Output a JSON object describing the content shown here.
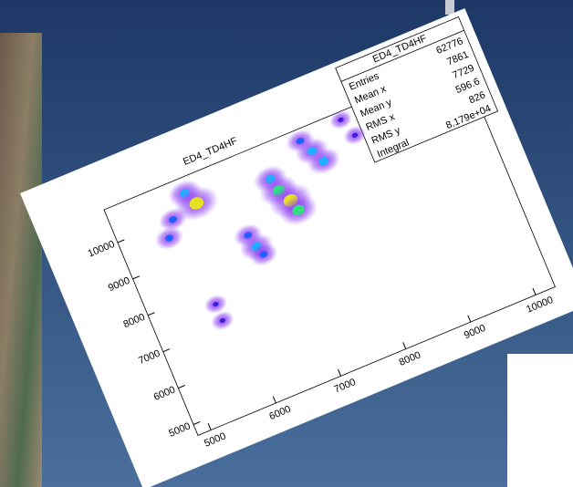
{
  "chart_data": {
    "type": "heatmap-scatter",
    "title": "ED4_TD4HF",
    "stats": {
      "title": "ED4_TD4HF",
      "rows": [
        {
          "name": "Entries",
          "value": 62776
        },
        {
          "name": "Mean x",
          "value": 7861
        },
        {
          "name": "Mean y",
          "value": 7729
        },
        {
          "name": "RMS x",
          "value": 596.6
        },
        {
          "name": "RMS y",
          "value": 826
        },
        {
          "name": "Integral",
          "value": {
            "value": 81790,
            "label": "8.179e+04"
          }
        }
      ]
    },
    "x": [
      5500,
      5650,
      5950,
      6050,
      6550,
      6600,
      6650,
      7150,
      7200,
      7300,
      7350,
      7750,
      7850,
      7950,
      5750,
      5750,
      8400,
      8500
    ],
    "values": [
      9600,
      10000,
      10500,
      10150,
      8900,
      8550,
      8300,
      10000,
      9650,
      9300,
      9000,
      10600,
      10250,
      9900,
      7600,
      7150,
      10700,
      10200
    ],
    "weights": [
      2,
      2,
      3,
      5,
      2,
      3,
      2,
      3,
      4,
      5,
      4,
      2,
      3,
      3,
      1,
      1,
      1,
      1
    ],
    "xlim": [
      4800,
      10300
    ],
    "ylim": [
      4700,
      10900
    ],
    "xticks": [
      5000,
      6000,
      7000,
      8000,
      9000,
      10000
    ],
    "yticks": [
      5000,
      6000,
      7000,
      8000,
      9000,
      10000
    ]
  }
}
